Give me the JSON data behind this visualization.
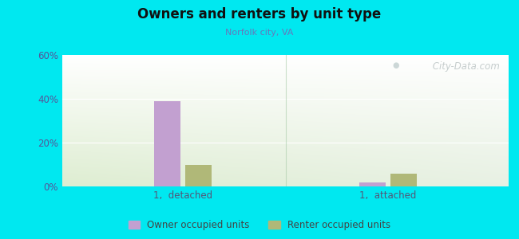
{
  "title": "Owners and renters by unit type",
  "subtitle": "Norfolk city, VA",
  "categories": [
    "1,  detached",
    "1,  attached"
  ],
  "owner_values": [
    39.0,
    2.0
  ],
  "renter_values": [
    10.0,
    6.0
  ],
  "owner_color": "#c2a0d0",
  "renter_color": "#b0b878",
  "ylim": [
    0,
    60
  ],
  "yticks": [
    0,
    20,
    40,
    60
  ],
  "ytick_labels": [
    "0%",
    "20%",
    "40%",
    "60%"
  ],
  "legend_owner": "Owner occupied units",
  "legend_renter": "Renter occupied units",
  "bar_width": 0.06,
  "group_centers": [
    0.27,
    0.73
  ],
  "outer_bg": "#00e8f0",
  "watermark": " City-Data.com"
}
